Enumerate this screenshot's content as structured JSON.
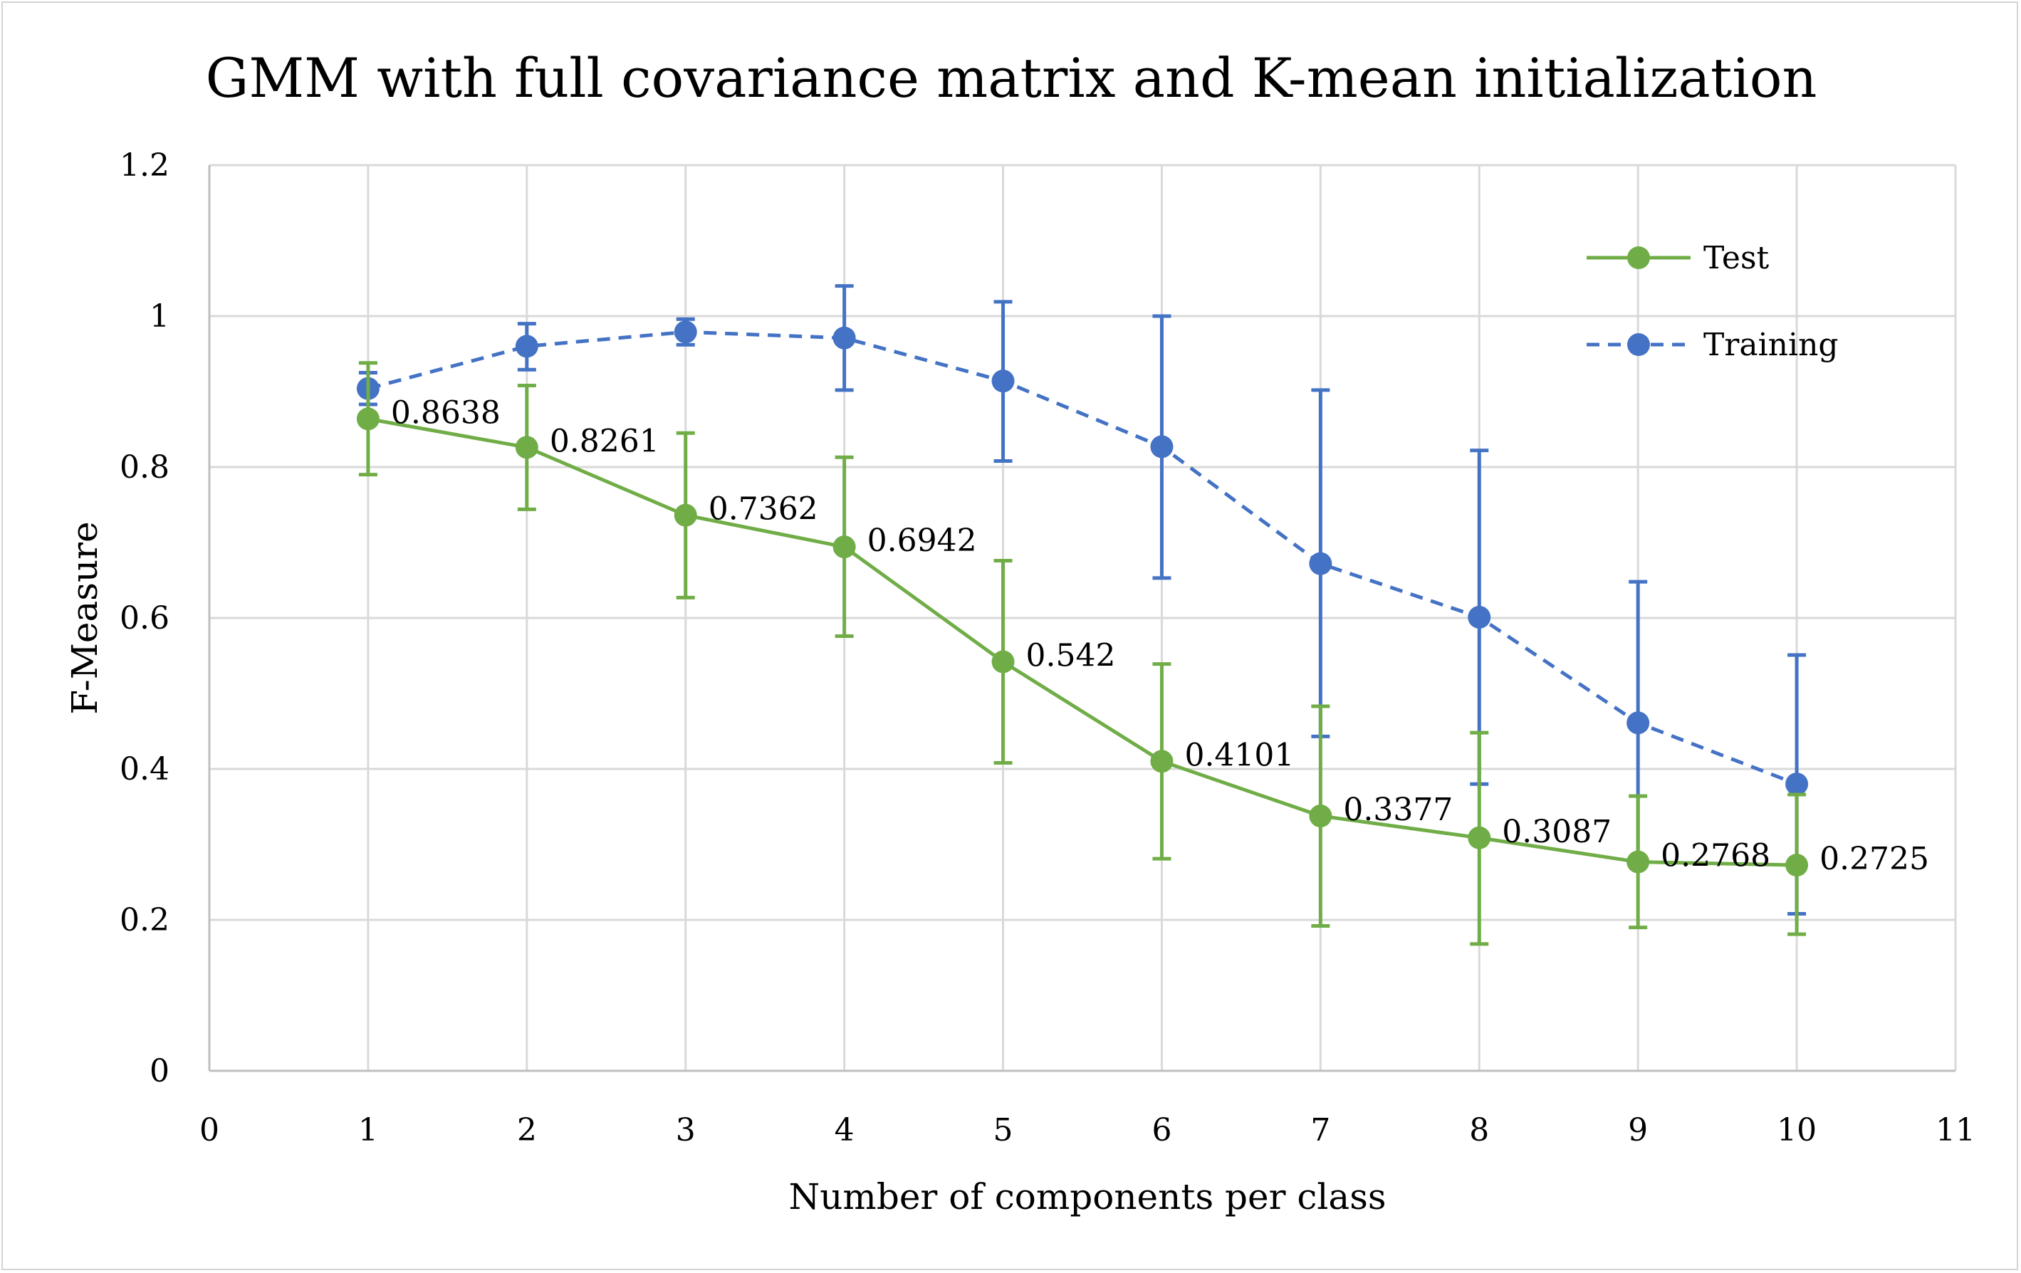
{
  "chart_data": {
    "type": "line",
    "title": "GMM with full covariance matrix and K-mean initialization",
    "xlabel": "Number of components per class",
    "ylabel": "F-Measure",
    "xlim": [
      0,
      11
    ],
    "ylim": [
      0,
      1.2
    ],
    "x_ticks": [
      "0",
      "1",
      "2",
      "3",
      "4",
      "5",
      "6",
      "7",
      "8",
      "9",
      "10",
      "11"
    ],
    "y_ticks": [
      "0",
      "0.2",
      "0.4",
      "0.6",
      "0.8",
      "1",
      "1.2"
    ],
    "grid": true,
    "legend_position": "top-right",
    "x": [
      1,
      2,
      3,
      4,
      5,
      6,
      7,
      8,
      9,
      10
    ],
    "series": [
      {
        "name": "Test",
        "color": "#70ad47",
        "line_style": "solid",
        "values": [
          0.8638,
          0.8261,
          0.7362,
          0.6942,
          0.542,
          0.4101,
          0.3377,
          0.3087,
          0.2768,
          0.2725
        ],
        "error_low": [
          0.79,
          0.744,
          0.627,
          0.576,
          0.408,
          0.281,
          0.192,
          0.168,
          0.19,
          0.181
        ],
        "error_high": [
          0.938,
          0.908,
          0.845,
          0.813,
          0.676,
          0.539,
          0.483,
          0.448,
          0.364,
          0.366
        ],
        "data_labels": [
          "0.8638",
          "0.8261",
          "0.7362",
          "0.6942",
          "0.542",
          "0.4101",
          "0.3377",
          "0.3087",
          "0.2768",
          "0.2725"
        ]
      },
      {
        "name": "Training",
        "color": "#4472c4",
        "line_style": "dashed",
        "values": [
          0.904,
          0.96,
          0.979,
          0.971,
          0.914,
          0.827,
          0.672,
          0.601,
          0.461,
          0.38
        ],
        "error_low": [
          0.883,
          0.929,
          0.962,
          0.902,
          0.808,
          0.653,
          0.443,
          0.38,
          0.273,
          0.208
        ],
        "error_high": [
          0.925,
          0.99,
          0.996,
          1.04,
          1.019,
          1.0,
          0.902,
          0.822,
          0.648,
          0.551
        ]
      }
    ]
  }
}
